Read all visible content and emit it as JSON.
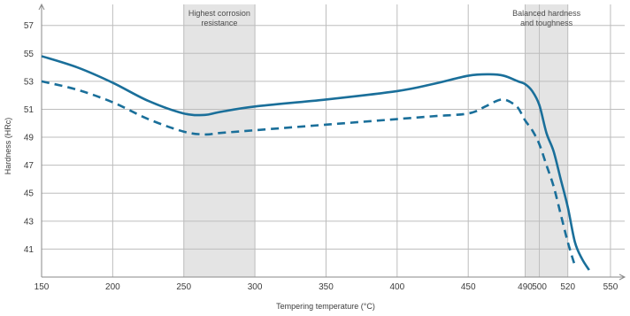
{
  "chart_data": {
    "type": "line",
    "title": "",
    "xlabel": "Tempering temperature (°C)",
    "ylabel": "Hardness (HRc)",
    "xlim": [
      150,
      560
    ],
    "ylim": [
      39,
      58.5
    ],
    "x_ticks": [
      150,
      200,
      250,
      300,
      350,
      400,
      450,
      490,
      500,
      520,
      550
    ],
    "x_tick_labels": [
      "150",
      "200",
      "250",
      "300",
      "350",
      "400",
      "450",
      "490",
      "500",
      "520",
      "550"
    ],
    "y_ticks": [
      41,
      43,
      45,
      47,
      49,
      51,
      53,
      55,
      57
    ],
    "y_tick_labels": [
      "41",
      "43",
      "45",
      "47",
      "49",
      "51",
      "53",
      "55",
      "57"
    ],
    "grid": true,
    "bands": [
      {
        "x_start": 250,
        "x_end": 300,
        "label_lines": [
          "Highest corrosion",
          "resistance"
        ]
      },
      {
        "x_start": 490,
        "x_end": 520,
        "label_lines": [
          "Balanced hardness",
          "and toughness"
        ]
      }
    ],
    "series": [
      {
        "style": "solid",
        "color": "#1a6f9a",
        "x": [
          150,
          175,
          200,
          225,
          250,
          265,
          275,
          300,
          350,
          400,
          425,
          450,
          465,
          475,
          485,
          490,
          495,
          500,
          505,
          510,
          515,
          520,
          525,
          530,
          535
        ],
        "y": [
          54.8,
          54.0,
          52.9,
          51.6,
          50.7,
          50.6,
          50.8,
          51.2,
          51.7,
          52.3,
          52.8,
          53.4,
          53.5,
          53.4,
          53.0,
          52.8,
          52.3,
          51.3,
          49.3,
          48.0,
          46.0,
          44.0,
          41.5,
          40.3,
          39.5
        ]
      },
      {
        "style": "dashed",
        "color": "#1a6f9a",
        "x": [
          150,
          175,
          200,
          225,
          250,
          265,
          275,
          300,
          350,
          400,
          425,
          450,
          462,
          470,
          475,
          480,
          485,
          490,
          495,
          500,
          505,
          510,
          515,
          520,
          525
        ],
        "y": [
          53.0,
          52.4,
          51.5,
          50.3,
          49.4,
          49.2,
          49.3,
          49.5,
          49.9,
          50.3,
          50.5,
          50.7,
          51.2,
          51.6,
          51.7,
          51.5,
          51.1,
          50.2,
          49.5,
          48.5,
          47.0,
          45.5,
          43.5,
          41.5,
          39.8
        ]
      }
    ]
  }
}
